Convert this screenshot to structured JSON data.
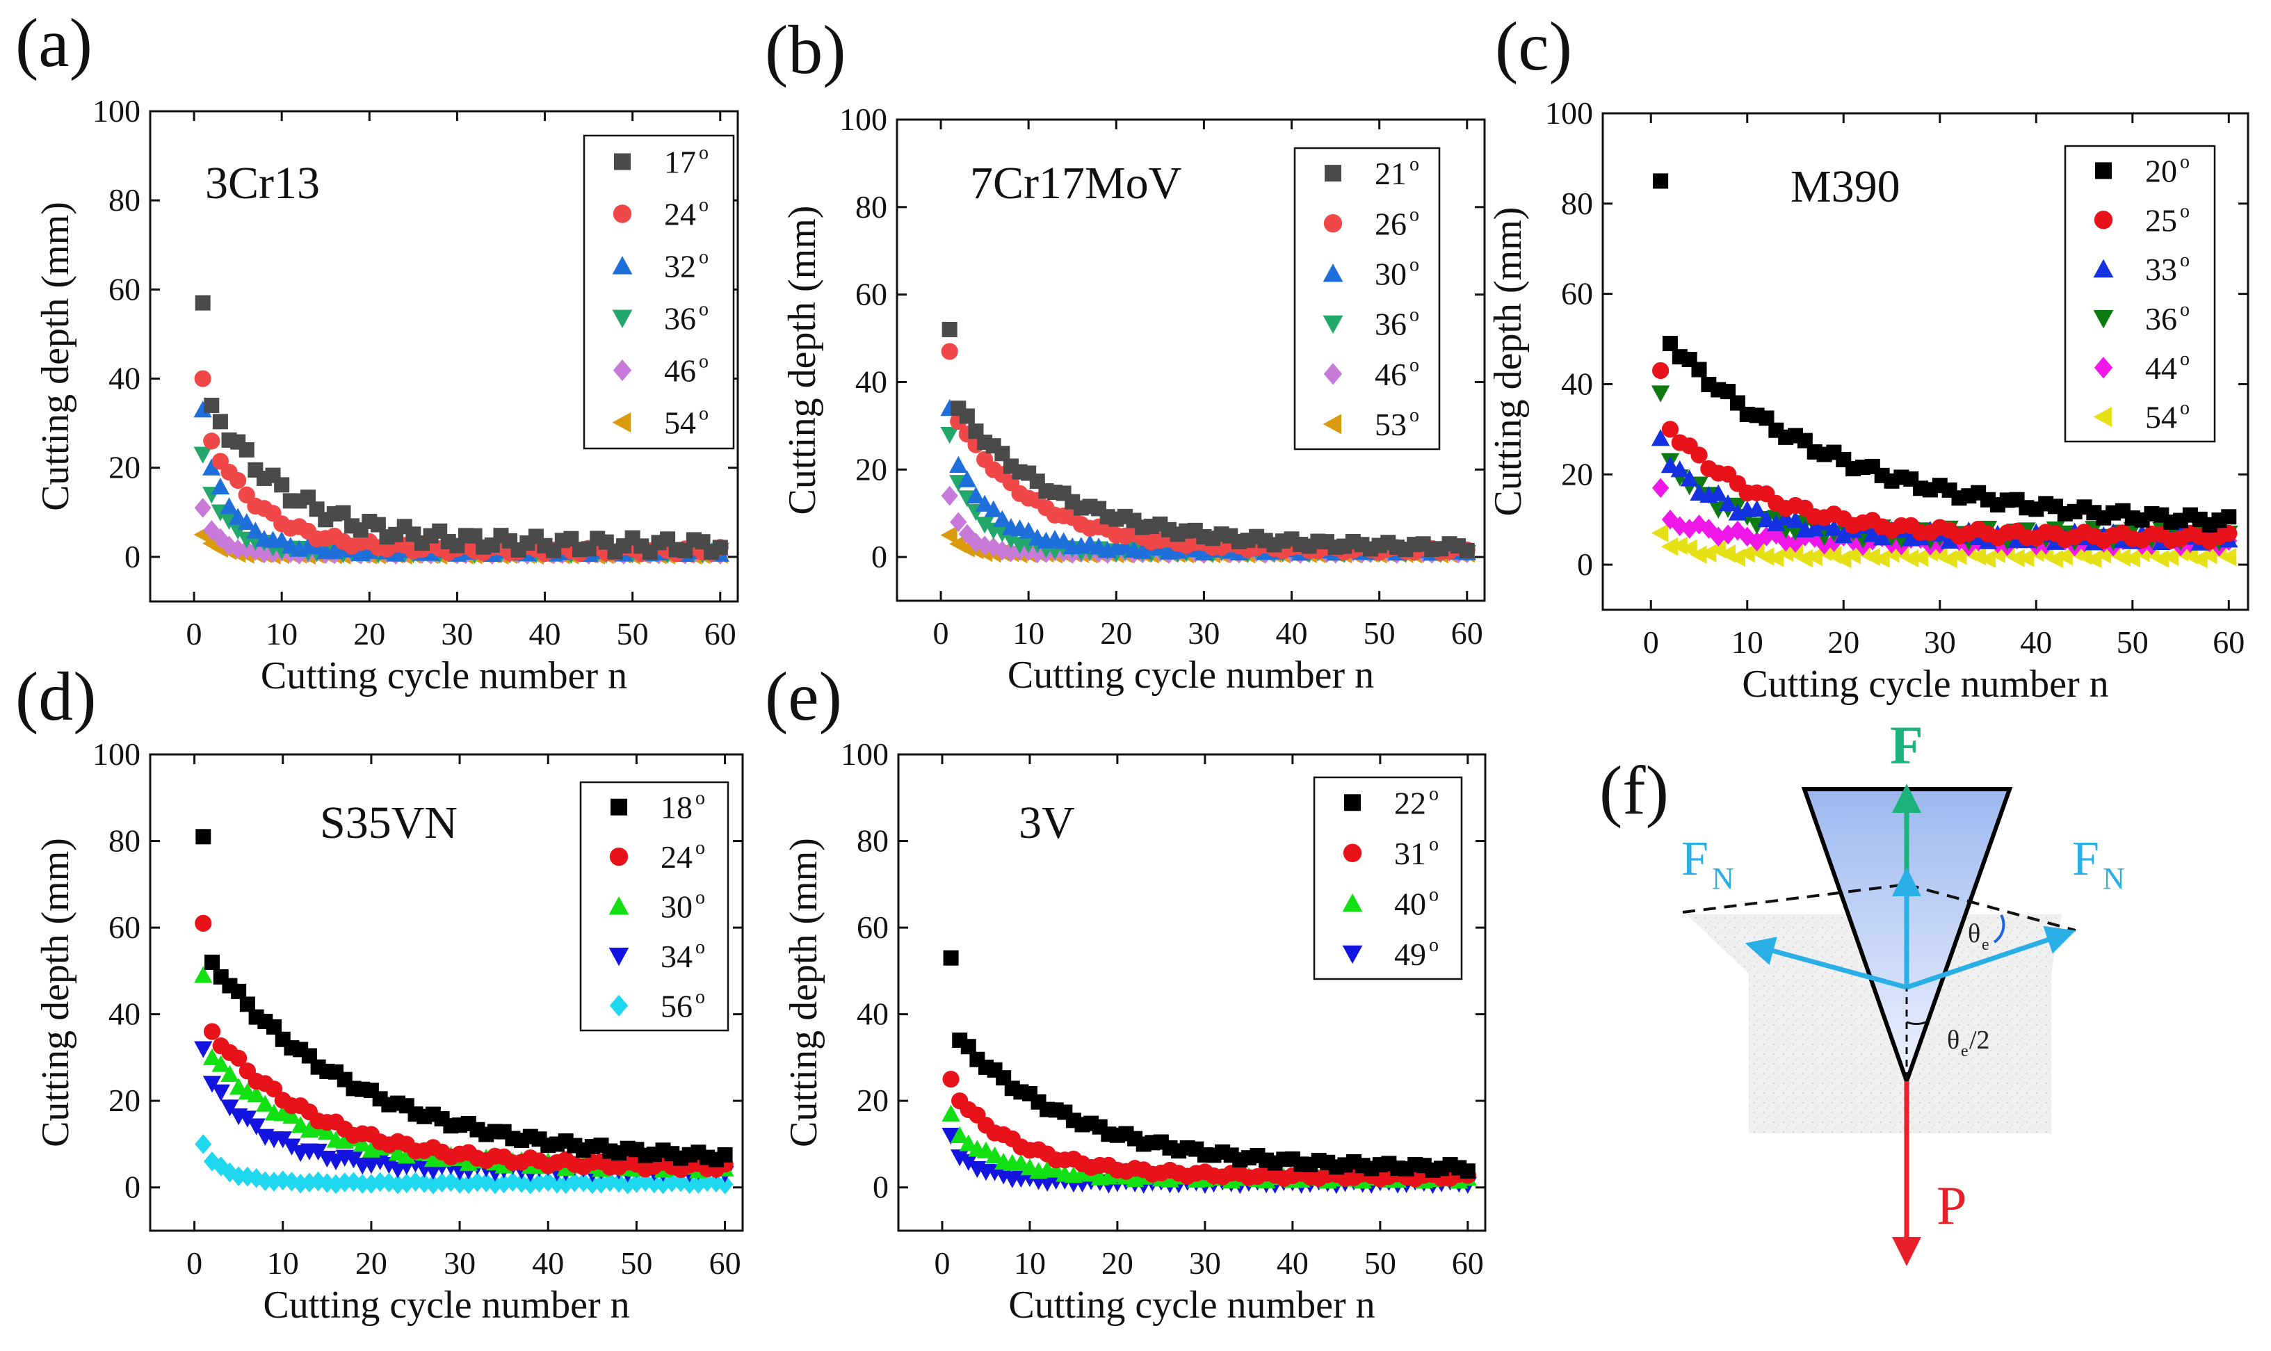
{
  "chart_data": [
    {
      "id": "a",
      "panel_label": "(a)",
      "type": "scatter",
      "material": "3Cr13",
      "xlabel": "Cutting cycle number n",
      "ylabel": "Cutting depth (mm)",
      "xlim": [
        -5,
        62
      ],
      "ylim": [
        -10,
        100
      ],
      "xticks": [
        0,
        10,
        20,
        30,
        40,
        50,
        60
      ],
      "yticks": [
        0,
        20,
        40,
        60,
        80,
        100
      ],
      "series": [
        {
          "name": "17",
          "unit": "o",
          "marker": "square",
          "color": "#4a4a4a",
          "y0": 57,
          "y1": 34,
          "decay": 9,
          "floor": 2.5,
          "jitter": 1.6
        },
        {
          "name": "24",
          "unit": "o",
          "marker": "circle",
          "color": "#f04848",
          "y0": 40,
          "y1": 26,
          "decay": 6,
          "floor": 1.5,
          "jitter": 0.8
        },
        {
          "name": "32",
          "unit": "o",
          "marker": "triangle-up",
          "color": "#1f6fdb",
          "y0": 33,
          "y1": 20,
          "decay": 3.5,
          "floor": 1.2,
          "jitter": 0.6
        },
        {
          "name": "36",
          "unit": "o",
          "marker": "triangle-down",
          "color": "#22a86a",
          "y0": 23,
          "y1": 14,
          "decay": 3,
          "floor": 1.0,
          "jitter": 0.5
        },
        {
          "name": "46",
          "unit": "o",
          "marker": "diamond",
          "color": "#c77ad8",
          "y0": 11,
          "y1": 6,
          "decay": 2,
          "floor": 0.8,
          "jitter": 0.3
        },
        {
          "name": "54",
          "unit": "o",
          "marker": "triangle-left",
          "color": "#d99a10",
          "y0": 5,
          "y1": 3,
          "decay": 1.5,
          "floor": 0.5,
          "jitter": 0.2
        }
      ]
    },
    {
      "id": "b",
      "panel_label": "(b)",
      "type": "scatter",
      "material": "7Cr17MoV",
      "xlabel": "Cutting cycle number n",
      "ylabel": "Cutting depth (mm)",
      "xlim": [
        -5,
        62
      ],
      "ylim": [
        -10,
        100
      ],
      "xticks": [
        0,
        10,
        20,
        30,
        40,
        50,
        60
      ],
      "yticks": [
        0,
        20,
        40,
        60,
        80,
        100
      ],
      "series": [
        {
          "name": "21",
          "unit": "o",
          "marker": "square",
          "color": "#4a4a4a",
          "y0": 52,
          "y1": 34,
          "decay": 12,
          "floor": 2.0,
          "jitter": 0.8
        },
        {
          "name": "26",
          "unit": "o",
          "marker": "circle",
          "color": "#f04848",
          "y0": 47,
          "y1": 31,
          "decay": 9,
          "floor": 1.5,
          "jitter": 0.6
        },
        {
          "name": "30",
          "unit": "o",
          "marker": "triangle-up",
          "color": "#1f6fdb",
          "y0": 34,
          "y1": 21,
          "decay": 5,
          "floor": 1.5,
          "jitter": 0.6
        },
        {
          "name": "36",
          "unit": "o",
          "marker": "triangle-down",
          "color": "#22a86a",
          "y0": 28,
          "y1": 17,
          "decay": 3.5,
          "floor": 1.2,
          "jitter": 0.5
        },
        {
          "name": "46",
          "unit": "o",
          "marker": "diamond",
          "color": "#c77ad8",
          "y0": 14,
          "y1": 8,
          "decay": 2,
          "floor": 1.0,
          "jitter": 0.3
        },
        {
          "name": "53",
          "unit": "o",
          "marker": "triangle-left",
          "color": "#d99a10",
          "y0": 5,
          "y1": 3,
          "decay": 1.5,
          "floor": 0.8,
          "jitter": 0.2
        }
      ]
    },
    {
      "id": "c",
      "panel_label": "(c)",
      "type": "scatter",
      "material": "M390",
      "xlabel": "Cutting cycle number n",
      "ylabel": "Cutting depth (mm)",
      "xlim": [
        -5,
        62
      ],
      "ylim": [
        -10,
        100
      ],
      "xticks": [
        0,
        10,
        20,
        30,
        40,
        50,
        60
      ],
      "yticks": [
        0,
        20,
        40,
        60,
        80,
        100
      ],
      "series": [
        {
          "name": "20",
          "unit": "o",
          "marker": "square",
          "color": "#000000",
          "y0": 85,
          "y1": 49,
          "decay": 18,
          "floor": 8.0,
          "jitter": 1.0
        },
        {
          "name": "25",
          "unit": "o",
          "marker": "circle",
          "color": "#e8131a",
          "y0": 43,
          "y1": 30,
          "decay": 10,
          "floor": 6.0,
          "jitter": 0.9
        },
        {
          "name": "33",
          "unit": "o",
          "marker": "triangle-up",
          "color": "#1432e0",
          "y0": 28,
          "y1": 22,
          "decay": 8,
          "floor": 6.0,
          "jitter": 1.2
        },
        {
          "name": "36",
          "unit": "o",
          "marker": "triangle-down",
          "color": "#0e7a12",
          "y0": 38,
          "y1": 23,
          "decay": 6,
          "floor": 6.5,
          "jitter": 1.5
        },
        {
          "name": "44",
          "unit": "o",
          "marker": "diamond",
          "color": "#f018e8",
          "y0": 17,
          "y1": 10,
          "decay": 6,
          "floor": 5.0,
          "jitter": 1.0
        },
        {
          "name": "54",
          "unit": "o",
          "marker": "triangle-left",
          "color": "#e6e016",
          "y0": 7,
          "y1": 4,
          "decay": 4,
          "floor": 2.0,
          "jitter": 0.8
        }
      ]
    },
    {
      "id": "d",
      "panel_label": "(d)",
      "type": "scatter",
      "material": "S35VN",
      "xlabel": "Cutting cycle number n",
      "ylabel": "Cutting depth (mm)",
      "xlim": [
        -5,
        62
      ],
      "ylim": [
        -10,
        100
      ],
      "xticks": [
        0,
        10,
        20,
        30,
        40,
        50,
        60
      ],
      "yticks": [
        0,
        20,
        40,
        60,
        80,
        100
      ],
      "series": [
        {
          "name": "18",
          "unit": "o",
          "marker": "square",
          "color": "#000000",
          "y0": 81,
          "y1": 52,
          "decay": 17,
          "floor": 5.5,
          "jitter": 0.8
        },
        {
          "name": "24",
          "unit": "o",
          "marker": "circle",
          "color": "#e8131a",
          "y0": 61,
          "y1": 36,
          "decay": 12,
          "floor": 4.5,
          "jitter": 0.8
        },
        {
          "name": "30",
          "unit": "o",
          "marker": "triangle-up",
          "color": "#12e012",
          "y0": 49,
          "y1": 30,
          "decay": 11,
          "floor": 4.5,
          "jitter": 0.8
        },
        {
          "name": "34",
          "unit": "o",
          "marker": "triangle-down",
          "color": "#1414e0",
          "y0": 32,
          "y1": 24,
          "decay": 7,
          "floor": 4.0,
          "jitter": 0.8
        },
        {
          "name": "56",
          "unit": "o",
          "marker": "diamond",
          "color": "#1fd8f0",
          "y0": 10,
          "y1": 6,
          "decay": 3,
          "floor": 1.0,
          "jitter": 0.3
        }
      ]
    },
    {
      "id": "e",
      "panel_label": "(e)",
      "type": "scatter",
      "material": "3V",
      "xlabel": "Cutting cycle number n",
      "ylabel": "Cutting depth (mm)",
      "xlim": [
        -5,
        62
      ],
      "ylim": [
        -10,
        100
      ],
      "xticks": [
        0,
        10,
        20,
        30,
        40,
        50,
        60
      ],
      "yticks": [
        0,
        20,
        40,
        60,
        80,
        100
      ],
      "series": [
        {
          "name": "22",
          "unit": "o",
          "marker": "square",
          "color": "#000000",
          "y0": 53,
          "y1": 34,
          "decay": 14,
          "floor": 4.0,
          "jitter": 0.7
        },
        {
          "name": "31",
          "unit": "o",
          "marker": "circle",
          "color": "#e8131a",
          "y0": 25,
          "y1": 20,
          "decay": 8,
          "floor": 2.5,
          "jitter": 0.6
        },
        {
          "name": "40",
          "unit": "o",
          "marker": "triangle-up",
          "color": "#12e012",
          "y0": 17,
          "y1": 12,
          "decay": 6,
          "floor": 2.0,
          "jitter": 0.5
        },
        {
          "name": "49",
          "unit": "o",
          "marker": "triangle-down",
          "color": "#1414e0",
          "y0": 12,
          "y1": 7,
          "decay": 4,
          "floor": 1.0,
          "jitter": 0.4
        }
      ]
    }
  ],
  "diagram_f": {
    "panel_label": "(f)",
    "force_F": "F",
    "force_FN": "F",
    "force_FN_sub": "N",
    "force_P": "P",
    "theta_e": "θ",
    "theta_e_sub": "e",
    "theta_half": "θ",
    "theta_half_sub": "e",
    "theta_half_suffix": "/2",
    "colors": {
      "F": "#1bb37a",
      "FN": "#29aee6",
      "P": "#e8202a",
      "wedge_top": "#9db8ee",
      "wedge_bottom": "#eaf1ff"
    }
  }
}
